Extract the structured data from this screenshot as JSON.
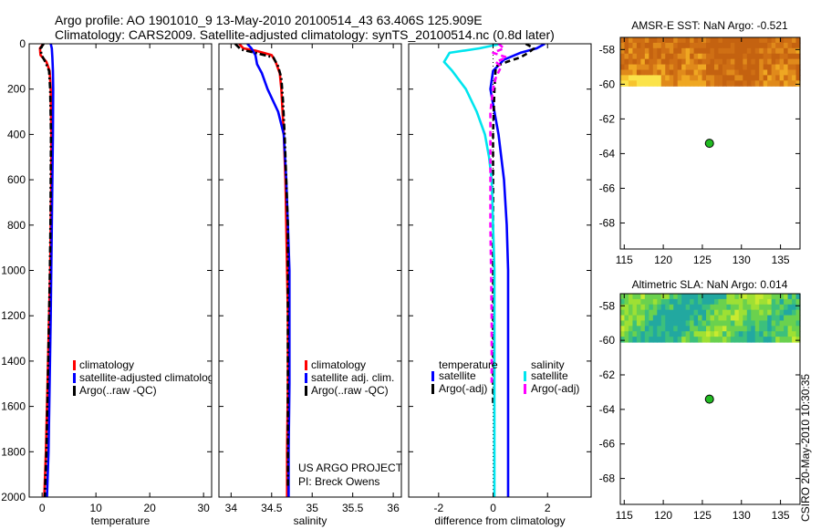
{
  "title": {
    "line1": "Argo profile: AO 1901010_9 13-May-2010 20100514_43 63.406S 125.909E",
    "line2": "Climatology: CARS2009. Satellite-adjusted climatology: synTS_20100514.nc (0.8d later)"
  },
  "credit": {
    "line1": "US ARGO PROJECT",
    "line2": "PI: Breck Owens"
  },
  "timestamp": "CSIRO 20-May-2010 10:30:35",
  "colors": {
    "climatology": "#ff0000",
    "satellite": "#0000ff",
    "argo": "#000000",
    "satellite_salinity": "#00e5ee",
    "argo_salinity_adj": "#ff00ff",
    "marker": "#22bb22"
  },
  "chart_data": [
    {
      "id": "temperature",
      "type": "line",
      "xlabel": "temperature",
      "ylabel": "",
      "xlim": [
        -2.4,
        31.5
      ],
      "ylim": [
        2000,
        0
      ],
      "xticks": [
        0,
        10,
        20,
        30
      ],
      "xtick_labels": [
        "0",
        "10",
        "20",
        "30"
      ],
      "yticks": [
        0,
        200,
        400,
        600,
        800,
        1000,
        1200,
        1400,
        1600,
        1800,
        2000
      ],
      "ytick_labels": [
        "0",
        "200",
        "400",
        "600",
        "800",
        "1000",
        "1200",
        "1400",
        "1600",
        "1800",
        "2000"
      ],
      "legend": [
        "climatology",
        "satellite-adjusted climatology",
        "Argo(..raw -QC)"
      ],
      "series": [
        {
          "name": "climatology",
          "color": "#ff0000",
          "dash": "solid",
          "x": [
            0.2,
            -0.4,
            -0.3,
            0.8,
            1.4,
            1.6,
            1.7,
            1.7,
            1.6,
            1.5,
            1.3,
            1.0,
            0.7,
            0.4
          ],
          "y": [
            0,
            20,
            50,
            80,
            120,
            200,
            400,
            600,
            800,
            1000,
            1200,
            1500,
            1800,
            2000
          ]
        },
        {
          "name": "satellite-adjusted climatology",
          "color": "#0000ff",
          "dash": "solid",
          "x": [
            1.6,
            1.8,
            1.9,
            2.0,
            2.05,
            2.0,
            1.9,
            1.8,
            1.7,
            1.6,
            1.4,
            1.2,
            0.9
          ],
          "y": [
            0,
            20,
            60,
            120,
            200,
            400,
            600,
            800,
            1000,
            1200,
            1500,
            1800,
            2000
          ]
        },
        {
          "name": "Argo(..raw -QC)",
          "color": "#000000",
          "dash": "dashdot",
          "x": [
            0.3,
            -0.3,
            -0.1,
            0.6,
            1.3,
            1.5,
            1.65,
            1.6,
            1.55,
            1.45,
            1.3,
            1.05,
            0.8,
            0.5
          ],
          "y": [
            0,
            20,
            50,
            80,
            120,
            200,
            400,
            600,
            800,
            1000,
            1200,
            1500,
            1800,
            2000
          ]
        }
      ]
    },
    {
      "id": "salinity",
      "type": "line",
      "xlabel": "salinity",
      "ylabel": "",
      "xlim": [
        33.85,
        36.1
      ],
      "ylim": [
        2000,
        0
      ],
      "xticks": [
        34,
        34.5,
        35,
        35.5,
        36
      ],
      "xtick_labels": [
        "34",
        "34.5",
        "35",
        "35.5",
        "36"
      ],
      "legend": [
        "climatology",
        "satellite adj. clim.",
        "Argo(..raw -QC)"
      ],
      "series": [
        {
          "name": "climatology",
          "color": "#ff0000",
          "dash": "solid",
          "x": [
            34.1,
            34.15,
            34.3,
            34.5,
            34.55,
            34.6,
            34.62,
            34.65,
            34.67,
            34.68,
            34.69,
            34.7,
            34.7,
            34.69,
            34.69
          ],
          "y": [
            0,
            20,
            30,
            50,
            80,
            130,
            200,
            400,
            600,
            800,
            1000,
            1200,
            1500,
            1800,
            2000
          ]
        },
        {
          "name": "satellite adj. clim.",
          "color": "#0000ff",
          "dash": "solid",
          "x": [
            34.2,
            34.25,
            34.3,
            34.32,
            34.38,
            34.45,
            34.58,
            34.65,
            34.68,
            34.7,
            34.72,
            34.72,
            34.71,
            34.71
          ],
          "y": [
            0,
            20,
            50,
            90,
            130,
            200,
            300,
            400,
            600,
            800,
            1000,
            1500,
            1800,
            2000
          ]
        },
        {
          "name": "Argo(..raw -QC)",
          "color": "#000000",
          "dash": "dashdot",
          "x": [
            34.05,
            34.12,
            34.3,
            34.52,
            34.58,
            34.62,
            34.64,
            34.66,
            34.68,
            34.7,
            34.7,
            34.7,
            34.7,
            34.7
          ],
          "y": [
            0,
            25,
            40,
            60,
            100,
            150,
            250,
            400,
            600,
            800,
            1000,
            1400,
            1700,
            1950
          ]
        }
      ]
    },
    {
      "id": "difference",
      "type": "line",
      "xlabel": "difference from climatology",
      "ylabel": "",
      "xlim": [
        -3.1,
        3.6
      ],
      "ylim": [
        2000,
        0
      ],
      "xticks": [
        -2,
        0,
        2
      ],
      "xtick_labels": [
        "-2",
        "0",
        "2"
      ],
      "legend_headers": [
        "temperature",
        "salinity"
      ],
      "legend": [
        "satellite",
        "Argo(-adj)",
        "satellite",
        "Argo(-adj)"
      ],
      "series": [
        {
          "name": "temperature satellite",
          "color": "#0000ff",
          "dash": "solid",
          "x": [
            1.9,
            1.6,
            1.0,
            0.4,
            0.0,
            -0.1,
            0.05,
            0.2,
            0.3,
            0.4,
            0.5,
            0.55,
            0.55,
            0.55,
            0.55
          ],
          "y": [
            0,
            20,
            40,
            70,
            120,
            200,
            300,
            400,
            500,
            600,
            800,
            1000,
            1400,
            1800,
            2000
          ]
        },
        {
          "name": "temperature Argo(-adj)",
          "color": "#000000",
          "dash": "dashed",
          "x": [
            1.2,
            1.5,
            1.3,
            1.0,
            0.5,
            0.1,
            0.05,
            0.0,
            0.0,
            0.0
          ],
          "y": [
            0,
            20,
            40,
            60,
            80,
            100,
            200,
            400,
            800,
            1600
          ]
        },
        {
          "name": "salinity satellite",
          "color": "#00e5ee",
          "dash": "solid",
          "x": [
            0.3,
            -0.5,
            -1.6,
            -1.8,
            -1.5,
            -1.0,
            -0.6,
            -0.3,
            -0.15,
            -0.05,
            0.0,
            0.05,
            0.05,
            0.05
          ],
          "y": [
            0,
            20,
            40,
            80,
            120,
            200,
            300,
            400,
            500,
            600,
            800,
            1000,
            1500,
            2000
          ]
        },
        {
          "name": "salinity Argo(-adj)",
          "color": "#ff00ff",
          "dash": "dashed",
          "x": [
            0.2,
            0.4,
            0.0,
            0.5,
            0.1,
            0.3,
            0.1,
            0.0,
            -0.1,
            -0.1,
            -0.1,
            -0.05,
            -0.05
          ],
          "y": [
            0,
            20,
            40,
            60,
            80,
            100,
            150,
            200,
            300,
            500,
            800,
            1200,
            1500
          ]
        }
      ]
    },
    {
      "id": "sst_map",
      "type": "heatmap",
      "title": "AMSR-E SST: NaN Argo: -0.521",
      "xlim": [
        114.5,
        137.5
      ],
      "ylim": [
        -69.5,
        -57.3
      ],
      "xticks": [
        115,
        120,
        125,
        130,
        135
      ],
      "xtick_labels": [
        "115",
        "120",
        "125",
        "130",
        "135"
      ],
      "yticks": [
        -58,
        -60,
        -62,
        -64,
        -66,
        -68
      ],
      "ytick_labels": [
        "-58",
        "-60",
        "-62",
        "-64",
        "-66",
        "-68"
      ],
      "data_lat_range": [
        -60.1,
        -57.3
      ],
      "palette": [
        "#fbe34a",
        "#f7c42e",
        "#efa722",
        "#e08a1b",
        "#cf6f14",
        "#c46210"
      ],
      "point": {
        "lon": 125.909,
        "lat": -63.406
      }
    },
    {
      "id": "sla_map",
      "type": "heatmap",
      "title": "Altimetric SLA: NaN Argo: 0.014",
      "xlim": [
        114.5,
        137.5
      ],
      "ylim": [
        -69.5,
        -57.3
      ],
      "xticks": [
        115,
        120,
        125,
        130,
        135
      ],
      "xtick_labels": [
        "115",
        "120",
        "125",
        "130",
        "135"
      ],
      "yticks": [
        -58,
        -60,
        -62,
        -64,
        -66,
        -68
      ],
      "ytick_labels": [
        "-58",
        "-60",
        "-62",
        "-64",
        "-66",
        "-68"
      ],
      "data_lat_range": [
        -60.1,
        -57.3
      ],
      "palette": [
        "#22a8a0",
        "#3cc07c",
        "#6ad14e",
        "#9ee034",
        "#c8ea30"
      ],
      "point": {
        "lon": 125.909,
        "lat": -63.406
      }
    }
  ]
}
